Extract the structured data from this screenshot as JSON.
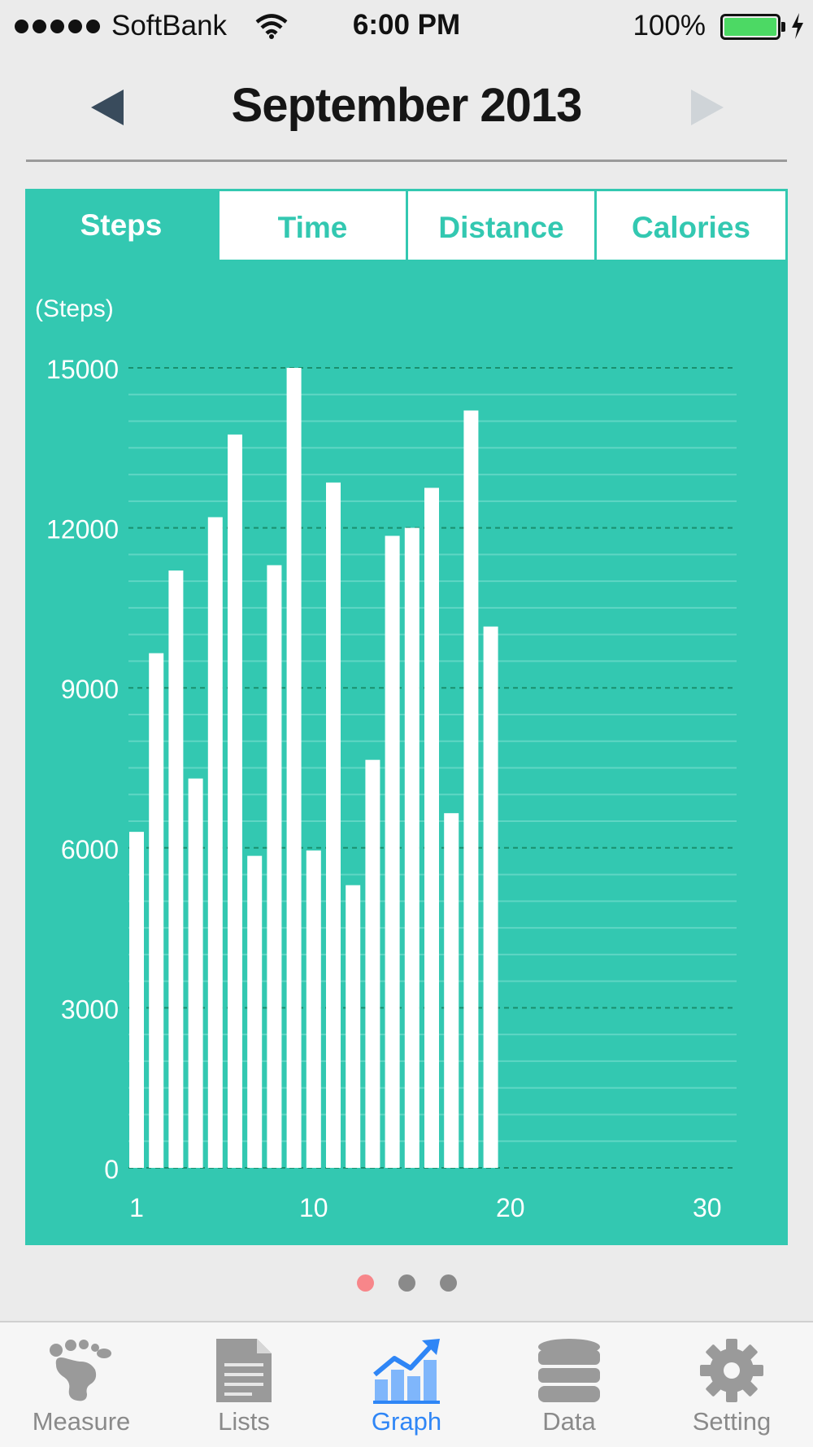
{
  "status_bar": {
    "carrier": "SoftBank",
    "time": "6:00 PM",
    "battery": "100%"
  },
  "header": {
    "month_title": "September 2013",
    "prev_icon": "left-triangle-icon",
    "next_icon": "right-triangle-icon"
  },
  "tabs": [
    {
      "label": "Steps",
      "active": true
    },
    {
      "label": "Time",
      "active": false
    },
    {
      "label": "Distance",
      "active": false
    },
    {
      "label": "Calories",
      "active": false
    }
  ],
  "chart_data": {
    "type": "bar",
    "ylabel": "(Steps)",
    "ylim": [
      0,
      15000
    ],
    "xlim": [
      1,
      30
    ],
    "y_ticks": [
      0,
      3000,
      6000,
      9000,
      12000,
      15000
    ],
    "x_ticks": [
      1,
      10,
      20,
      30
    ],
    "grid": true,
    "x": [
      1,
      2,
      3,
      4,
      5,
      6,
      7,
      8,
      9,
      10,
      11,
      12,
      13,
      14,
      15,
      16,
      17,
      18,
      19
    ],
    "values": [
      6300,
      9650,
      11200,
      7300,
      12200,
      13750,
      5850,
      11300,
      15000,
      5950,
      12850,
      5300,
      7650,
      11850,
      12000,
      12750,
      6650,
      14200,
      10150
    ],
    "colors": {
      "background": "#33c8b1",
      "bar": "#ffffff",
      "grid_major": "#1a8f6e",
      "grid_minor": "#5fd6c4",
      "text": "#ffffff"
    }
  },
  "page_dots": {
    "count": 3,
    "current": 0
  },
  "tab_bar": [
    {
      "label": "Measure",
      "icon": "footprint-icon",
      "active": false
    },
    {
      "label": "Lists",
      "icon": "document-icon",
      "active": false
    },
    {
      "label": "Graph",
      "icon": "graph-icon",
      "active": true
    },
    {
      "label": "Data",
      "icon": "database-icon",
      "active": false
    },
    {
      "label": "Setting",
      "icon": "gear-icon",
      "active": false
    }
  ]
}
